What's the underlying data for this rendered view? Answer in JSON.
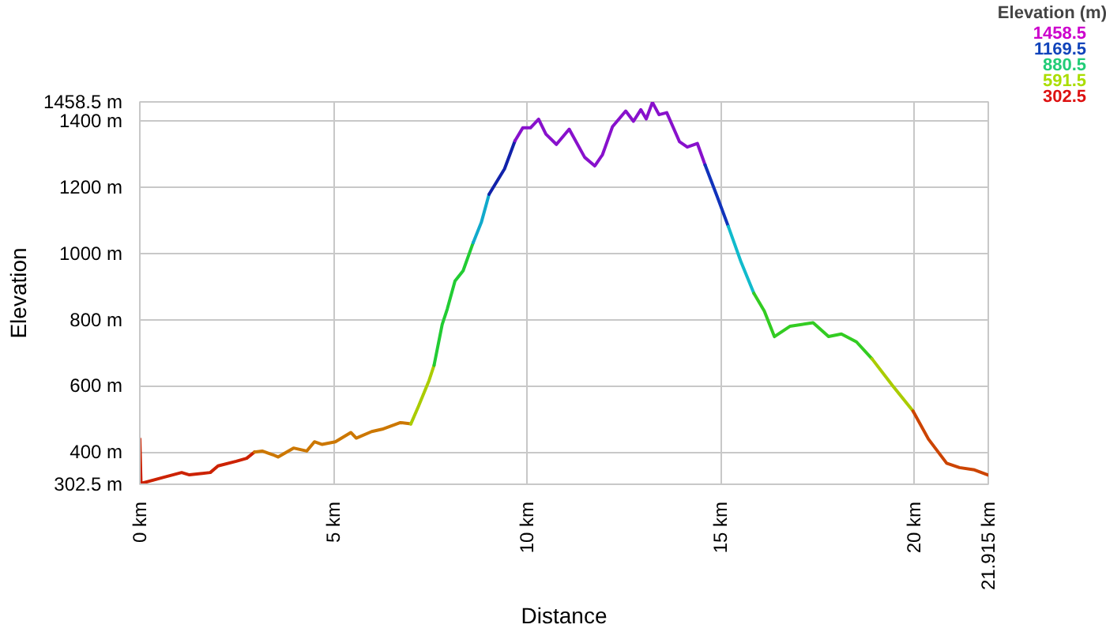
{
  "chart_data": {
    "type": "line",
    "xlabel": "Distance",
    "ylabel": "Elevation",
    "clabel": "Elevation (m)",
    "annotations": [
      "1458.5",
      "1169.5",
      "880.5",
      "591.5",
      "302.5"
    ],
    "colors": [
      "#cc00cc",
      "#1144bb",
      "#22cc77",
      "#aadd00",
      "#dd1111"
    ],
    "xlim": [
      0,
      21.915
    ],
    "ylim": [
      302.5,
      1458.5
    ],
    "xticks": [
      {
        "value": 0,
        "label": "0 km"
      },
      {
        "value": 5,
        "label": "5 km"
      },
      {
        "value": 10,
        "label": "10 km"
      },
      {
        "value": 15,
        "label": "15 km"
      },
      {
        "value": 20,
        "label": "20 km"
      },
      {
        "value": 21.915,
        "label": "21.915 km"
      }
    ],
    "yticks": [
      {
        "value": 302.5,
        "label": "302.5 m"
      },
      {
        "value": 400,
        "label": "400 m"
      },
      {
        "value": 600,
        "label": "600 m"
      },
      {
        "value": 800,
        "label": "800 m"
      },
      {
        "value": 1000,
        "label": "1000 m"
      },
      {
        "value": 1200,
        "label": "1200 m"
      },
      {
        "value": 1400,
        "label": "1400 m"
      },
      {
        "value": 1458.5,
        "label": "1458.5 m"
      }
    ],
    "grid": true,
    "series": [
      {
        "color": "#cc2200",
        "x": [
          0,
          0.03,
          0.6,
          1.08,
          1.28,
          1.82,
          2.02,
          2.49,
          2.76,
          2.96
        ],
        "values": [
          440,
          305,
          323,
          338,
          331,
          338,
          358,
          372,
          381,
          400
        ]
      },
      {
        "color": "#cc7700",
        "x": [
          2.96,
          3.16,
          3.43,
          3.57,
          3.97,
          4.31,
          4.51,
          4.71,
          5.05,
          5.45,
          5.59,
          5.99,
          6.26,
          6.73,
          7.0
        ],
        "values": [
          400,
          403,
          392,
          385,
          412,
          403,
          431,
          423,
          431,
          459,
          442,
          462,
          469,
          489,
          485
        ]
      },
      {
        "color": "#aacc00",
        "x": [
          7.0,
          7.2,
          7.47,
          7.6
        ],
        "values": [
          485,
          539,
          616,
          662
        ]
      },
      {
        "color": "#22cc33",
        "x": [
          7.6,
          7.81,
          7.94,
          8.14,
          8.35,
          8.61
        ],
        "values": [
          662,
          786,
          832,
          917,
          948,
          1033
        ]
      },
      {
        "color": "#11aacc",
        "x": [
          8.61,
          8.82,
          9.02
        ],
        "values": [
          1033,
          1094,
          1179
        ]
      },
      {
        "color": "#1122aa",
        "x": [
          9.02,
          9.42,
          9.69
        ],
        "values": [
          1179,
          1256,
          1341
        ]
      },
      {
        "color": "#8811cc",
        "x": [
          9.69,
          9.89,
          10.09,
          10.3,
          10.49,
          10.76,
          11.09,
          11.49,
          11.75,
          11.95,
          12.21,
          12.55,
          12.75,
          12.94,
          13.08,
          13.24,
          13.41,
          13.61,
          13.94,
          14.14,
          14.4,
          14.6
        ],
        "values": [
          1341,
          1380,
          1380,
          1406,
          1361,
          1330,
          1376,
          1291,
          1265,
          1299,
          1384,
          1431,
          1400,
          1435,
          1407,
          1457,
          1420,
          1426,
          1338,
          1322,
          1333,
          1268
        ]
      },
      {
        "color": "#1133bb",
        "x": [
          14.6,
          14.93,
          15.2
        ],
        "values": [
          1268,
          1167,
          1082
        ]
      },
      {
        "color": "#11bbcc",
        "x": [
          15.2,
          15.53,
          15.86
        ],
        "values": [
          1082,
          974,
          880
        ]
      },
      {
        "color": "#33cc22",
        "x": [
          15.86,
          16.13,
          16.39,
          16.79,
          17.39,
          17.79,
          18.12,
          18.51,
          18.91
        ],
        "values": [
          880,
          826,
          749,
          780,
          791,
          749,
          757,
          733,
          682
        ]
      },
      {
        "color": "#aacc00",
        "x": [
          18.91,
          19.44,
          19.97
        ],
        "values": [
          682,
          601,
          524
        ]
      },
      {
        "color": "#cc4400",
        "x": [
          19.97,
          20.37,
          20.84,
          21.17,
          21.56,
          21.915
        ],
        "values": [
          524,
          439,
          366,
          353,
          346,
          330
        ]
      }
    ]
  }
}
